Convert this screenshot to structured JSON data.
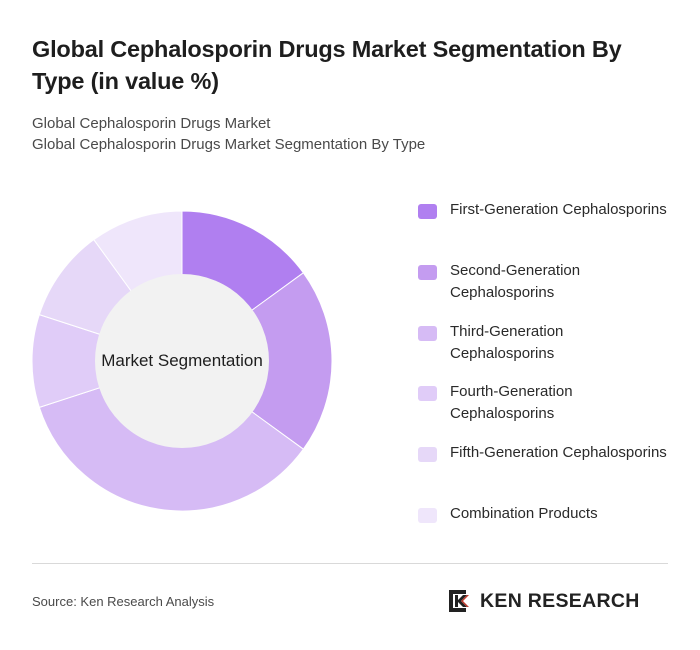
{
  "title": "Global Cephalosporin Drugs Market Segmentation By Type (in value %)",
  "subtitle_line1": "Global Cephalosporin Drugs Market",
  "subtitle_line2": "Global Cephalosporin Drugs Market Segmentation By Type",
  "center_label": "Market Segmentation",
  "source": "Source: Ken Research Analysis",
  "logo_text": "KEN RESEARCH",
  "chart_data": {
    "type": "pie",
    "donut": true,
    "categories": [
      "First-Generation Cephalosporins",
      "Second-Generation Cephalosporins",
      "Third-Generation Cephalosporins",
      "Fourth-Generation Cephalosporins",
      "Fifth-Generation Cephalosporins",
      "Combination Products"
    ],
    "values": [
      15,
      20,
      35,
      10,
      10,
      10
    ],
    "colors": [
      "#b07ff0",
      "#c49cf0",
      "#d6bbf5",
      "#e0ccf8",
      "#e6d8f8",
      "#efe6fb"
    ],
    "legend_placement": "right"
  }
}
